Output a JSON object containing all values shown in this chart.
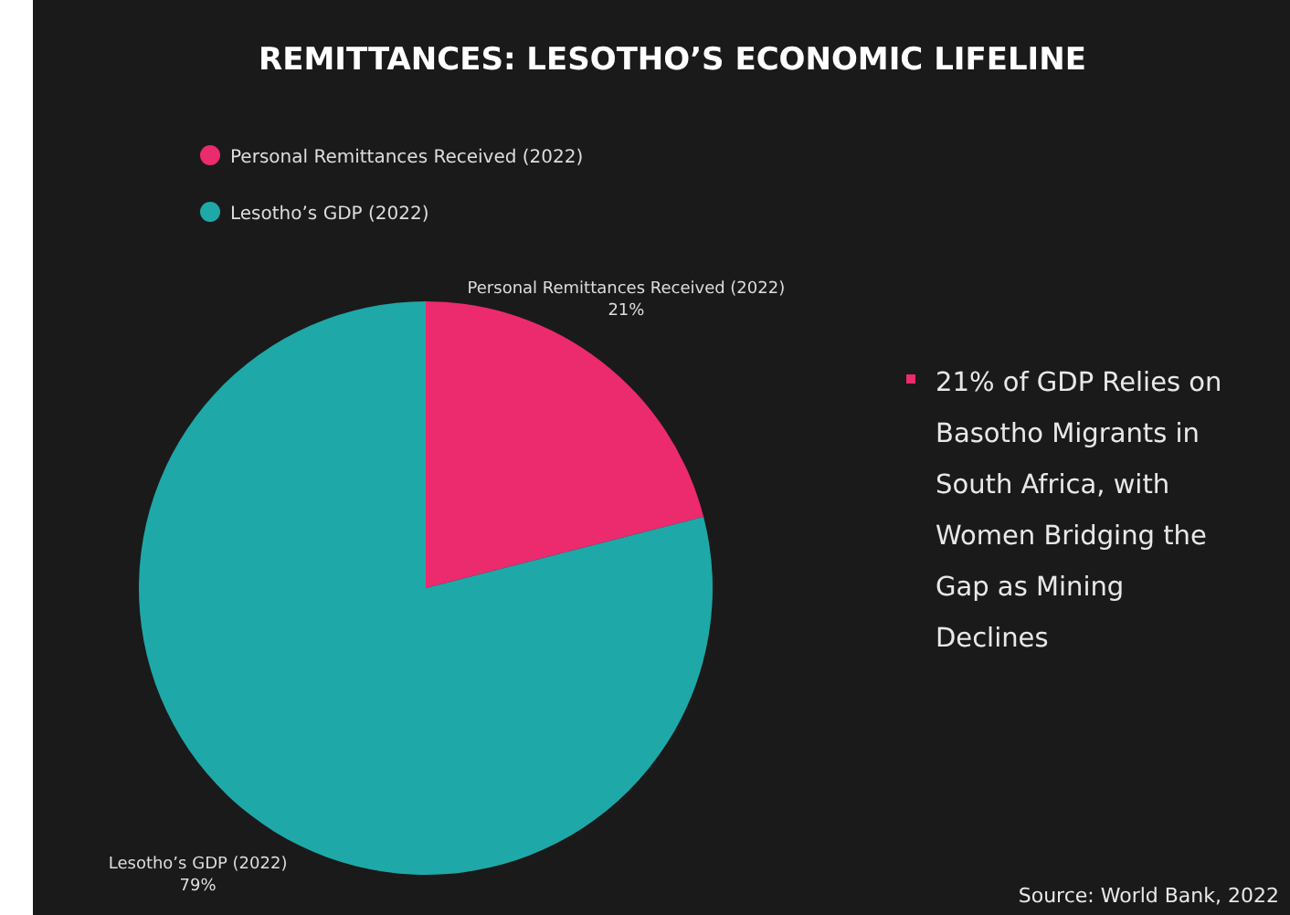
{
  "chart_data": {
    "type": "pie",
    "title": "REMITTANCES: LESOTHO’S ECONOMIC LIFELINE",
    "categories": [
      "Personal Remittances Received (2022)",
      "Lesotho’s GDP (2022)"
    ],
    "values": [
      21,
      79
    ],
    "value_labels": [
      "21%",
      "79%"
    ],
    "colors": [
      "#ec2a6e",
      "#1fa8a8"
    ],
    "legend": "top left",
    "annotations": [
      "21% of GDP Relies on Basotho Migrants in South Africa, with Women Bridging the Gap as Mining Declines",
      "Source: World Bank, 2022"
    ]
  }
}
